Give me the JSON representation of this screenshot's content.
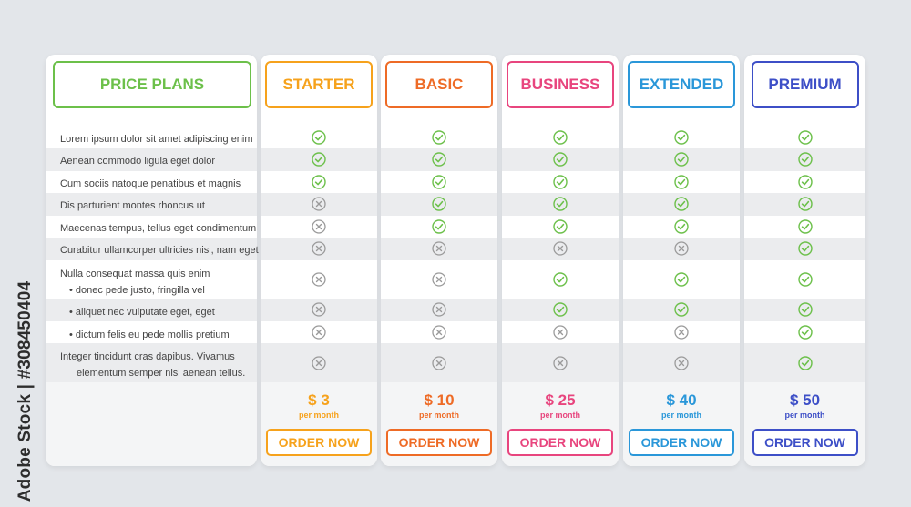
{
  "watermark": "Adobe Stock | #308450404",
  "header": {
    "title": "PRICE PLANS",
    "color": "#6cc04a"
  },
  "features": [
    "Lorem ipsum dolor sit amet adipiscing enim",
    "Aenean commodo ligula eget dolor",
    "Cum sociis natoque penatibus et magnis",
    "Dis parturient montes rhoncus ut",
    "Maecenas tempus, tellus eget condimentum",
    "Curabitur ullamcorper ultricies nisi, nam eget",
    "Nulla consequat massa quis enim",
    "• donec pede justo, fringilla vel",
    "• aliquet nec vulputate eget, eget",
    "• dictum felis eu pede mollis pretium",
    "Integer tincidunt cras dapibus. Vivamus",
    "elementum semper nisi aenean tellus."
  ],
  "plans": [
    {
      "name": "STARTER",
      "color": "#f6a21c",
      "price": "$ 3",
      "period": "per month",
      "cta": "ORDER NOW",
      "included": [
        true,
        true,
        true,
        false,
        false,
        false,
        false,
        false,
        false,
        false
      ]
    },
    {
      "name": "BASIC",
      "color": "#ee6b26",
      "price": "$ 10",
      "period": "per month",
      "cta": "ORDER NOW",
      "included": [
        true,
        true,
        true,
        true,
        true,
        false,
        false,
        false,
        false,
        false
      ]
    },
    {
      "name": "BUSINESS",
      "color": "#e8457e",
      "price": "$ 25",
      "period": "per month",
      "cta": "ORDER NOW",
      "included": [
        true,
        true,
        true,
        true,
        true,
        false,
        true,
        true,
        false,
        false
      ]
    },
    {
      "name": "EXTENDED",
      "color": "#2a97d9",
      "price": "$ 40",
      "period": "per month",
      "cta": "ORDER NOW",
      "included": [
        true,
        true,
        true,
        true,
        true,
        false,
        true,
        true,
        false,
        false
      ]
    },
    {
      "name": "PREMIUM",
      "color": "#3d4fc7",
      "price": "$ 50",
      "period": "per month",
      "cta": "ORDER NOW",
      "included": [
        true,
        true,
        true,
        true,
        true,
        true,
        true,
        true,
        true,
        true
      ]
    }
  ],
  "icons": {
    "check": "check-icon",
    "cross": "cross-icon",
    "check_color": "#6cc04a",
    "cross_color": "#9a9a9a"
  }
}
